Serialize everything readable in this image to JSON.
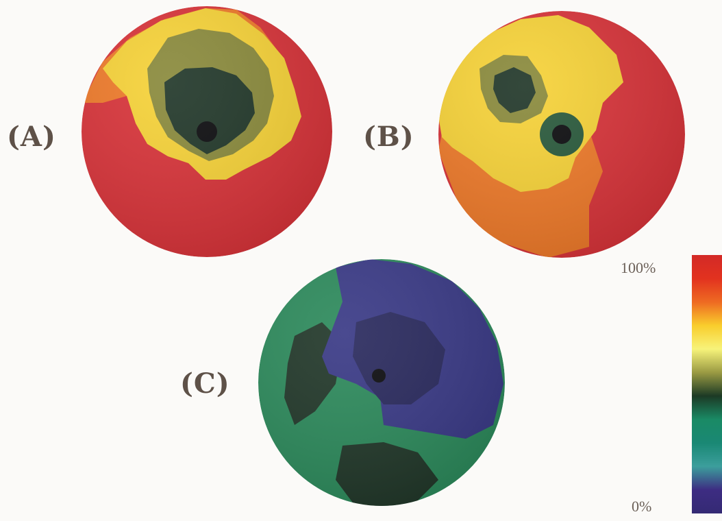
{
  "figure": {
    "panels": [
      {
        "label": "(A)",
        "map": "a"
      },
      {
        "label": "(B)",
        "map": "b"
      },
      {
        "label": "(C)",
        "map": "c"
      }
    ],
    "colorbar": {
      "top_label": "100%",
      "bottom_label": "0%",
      "stops": [
        "#d32a27",
        "#e2321f",
        "#ee6a22",
        "#f9cd2c",
        "#f7f37a",
        "#9a9a43",
        "#1c3a25",
        "#1a8a65",
        "#1a8874",
        "#3c9e9c",
        "#3d2c82",
        "#342a74"
      ]
    },
    "colors": {
      "red": "#d8343a",
      "orange": "#ee7a2a",
      "yellow": "#f6d238",
      "olive": "#8a8a3c",
      "dark_green": "#22382a",
      "green": "#2d8a5c",
      "dark_blue": "#2a2a5e",
      "blue": "#3a3a86",
      "center": "#0d0d10"
    }
  }
}
